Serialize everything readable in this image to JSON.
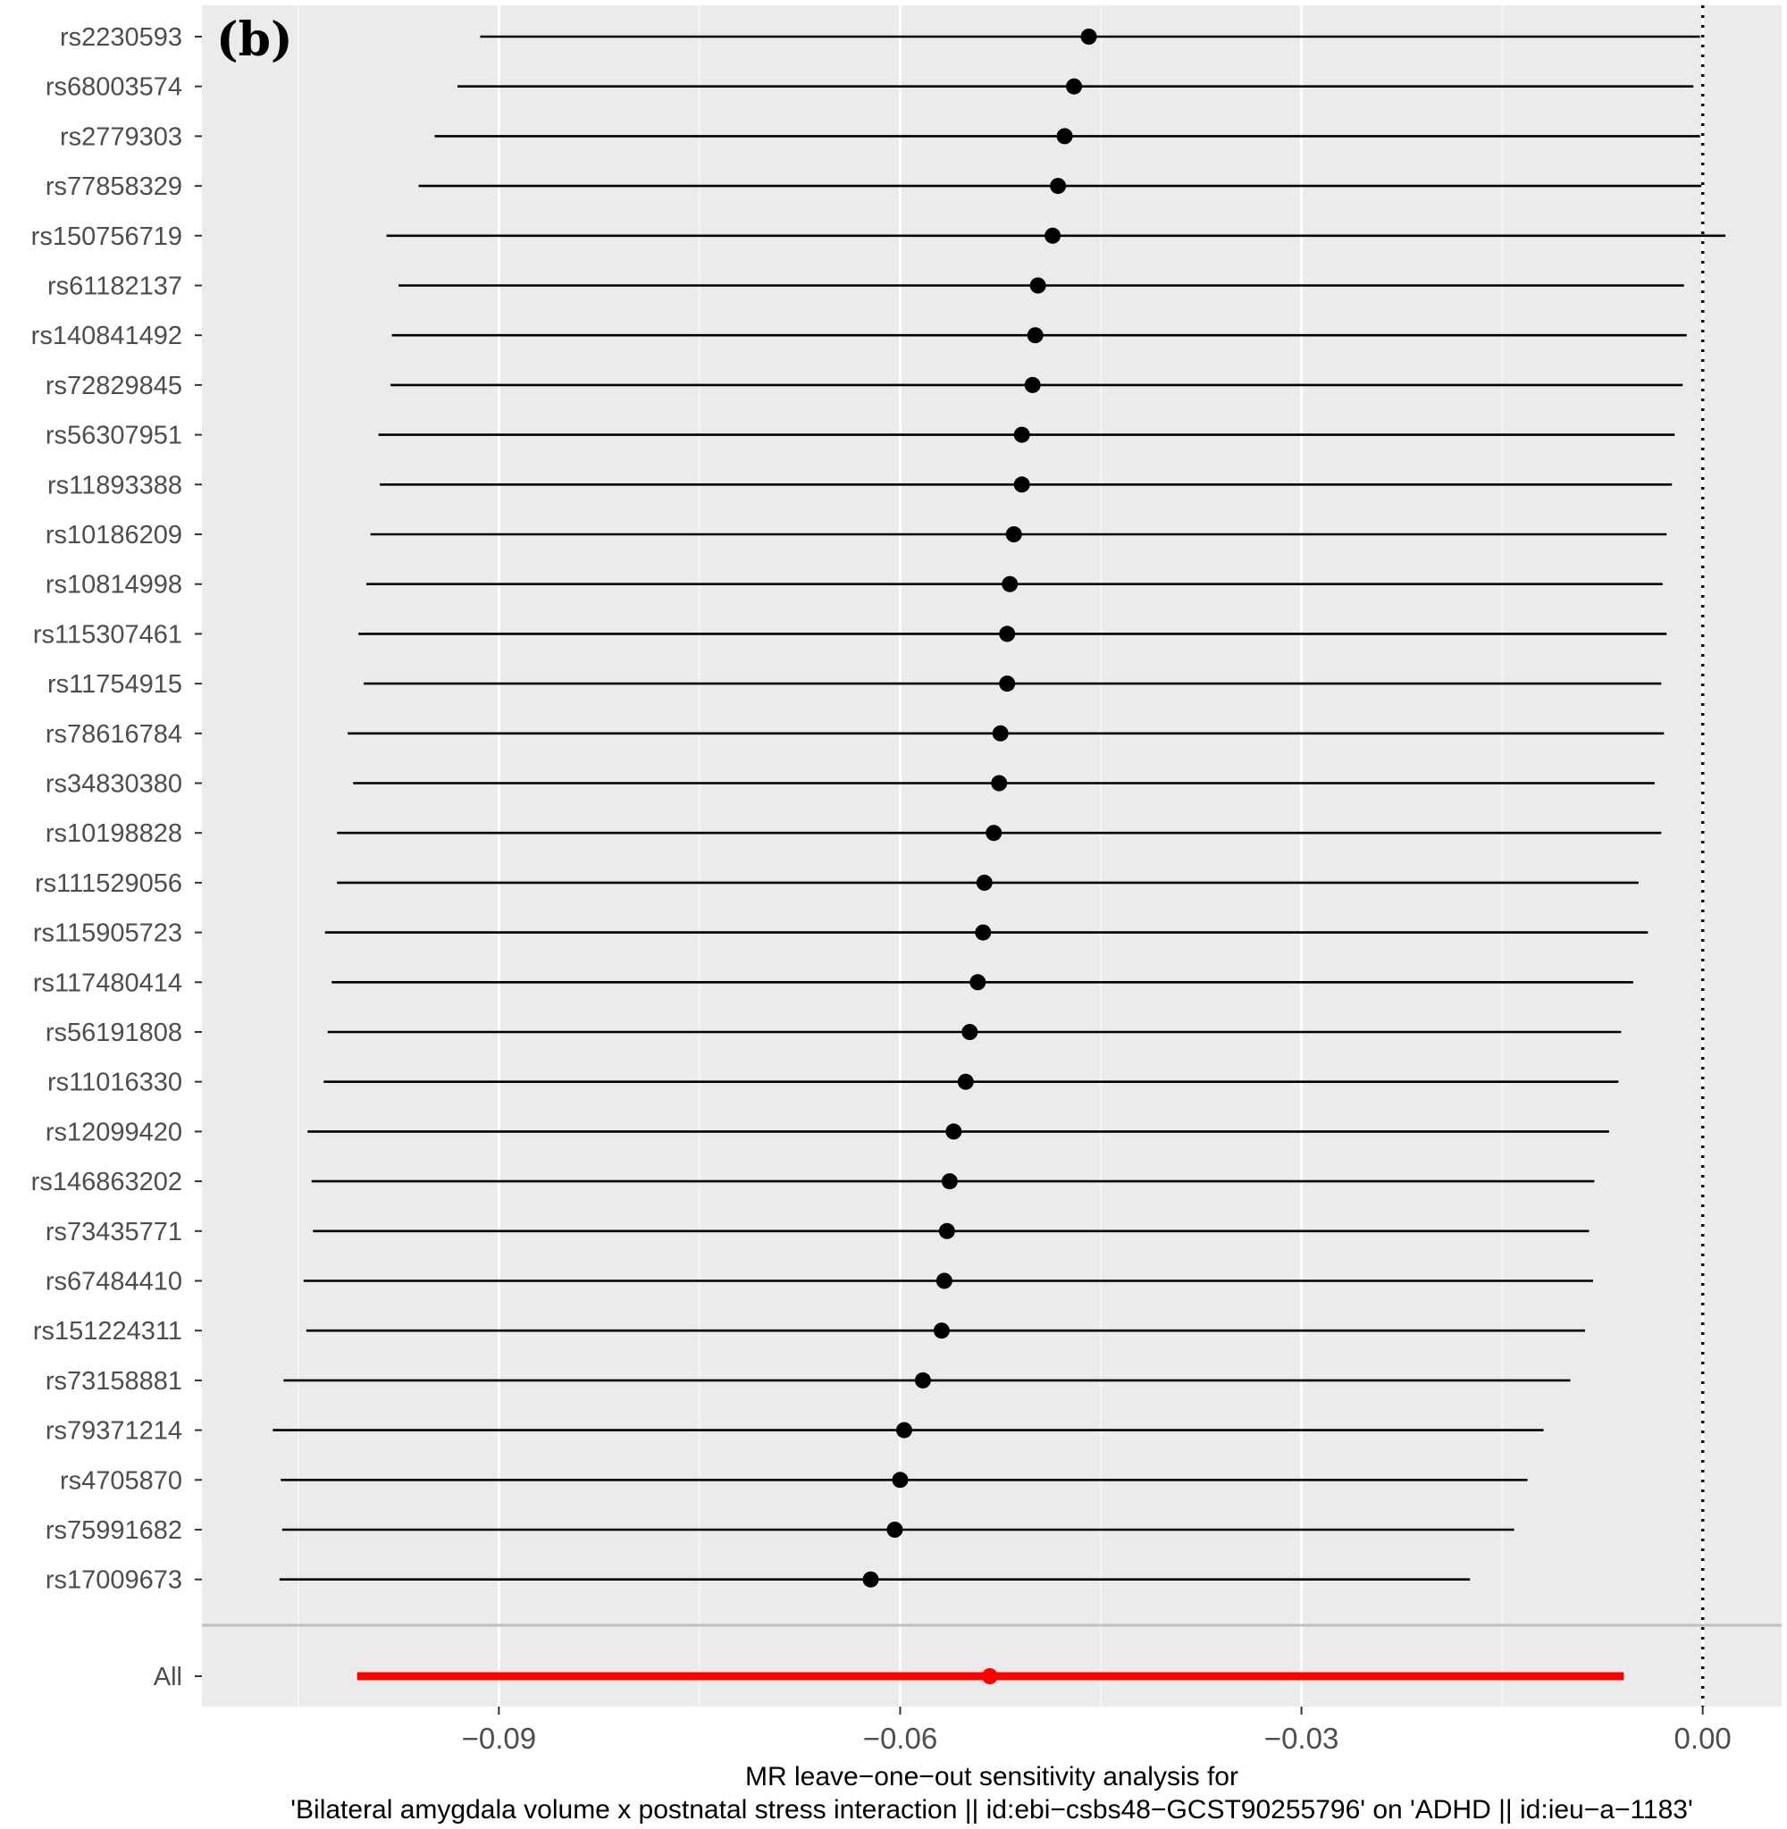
{
  "panel_tag": "(b)",
  "chart_data": {
    "type": "scatter",
    "subtype": "forest-plot",
    "xlabel_line1": "MR leave−one−out sensitivity analysis for",
    "xlabel_line2": "'Bilateral amygdala volume x postnatal stress interaction || id:ebi−csbs48−GCST90255796' on 'ADHD || id:ieu−a−1183'",
    "xlim": [
      -0.1122,
      0.0059
    ],
    "xticks": [
      -0.09,
      -0.06,
      -0.03,
      0.0
    ],
    "xtick_labels": [
      "−0.09",
      "−0.06",
      "−0.03",
      "0.00"
    ],
    "reference_line": 0.0,
    "grid": true,
    "colors": {
      "snp": "#000000",
      "overall": "#ff0000",
      "panel": "#ebebeb",
      "grid": "#ffffff"
    },
    "rows": [
      {
        "label": "rs2230593",
        "b": -0.0459,
        "lo": -0.0914,
        "hi": -0.0002
      },
      {
        "label": "rs68003574",
        "b": -0.047,
        "lo": -0.0931,
        "hi": -0.0007
      },
      {
        "label": "rs2779303",
        "b": -0.0477,
        "lo": -0.0948,
        "hi": -0.0002
      },
      {
        "label": "rs77858329",
        "b": -0.0482,
        "lo": -0.096,
        "hi": -0.0001
      },
      {
        "label": "rs150756719",
        "b": -0.0486,
        "lo": -0.0984,
        "hi": 0.0017
      },
      {
        "label": "rs61182137",
        "b": -0.0497,
        "lo": -0.0975,
        "hi": -0.0014
      },
      {
        "label": "rs140841492",
        "b": -0.0499,
        "lo": -0.098,
        "hi": -0.0012
      },
      {
        "label": "rs72829845",
        "b": -0.0501,
        "lo": -0.0981,
        "hi": -0.0015
      },
      {
        "label": "rs56307951",
        "b": -0.0509,
        "lo": -0.099,
        "hi": -0.0021
      },
      {
        "label": "rs11893388",
        "b": -0.0509,
        "lo": -0.0989,
        "hi": -0.0023
      },
      {
        "label": "rs10186209",
        "b": -0.0515,
        "lo": -0.0996,
        "hi": -0.0027
      },
      {
        "label": "rs10814998",
        "b": -0.0518,
        "lo": -0.0999,
        "hi": -0.003
      },
      {
        "label": "rs115307461",
        "b": -0.052,
        "lo": -0.1005,
        "hi": -0.0027
      },
      {
        "label": "rs11754915",
        "b": -0.052,
        "lo": -0.1001,
        "hi": -0.0031
      },
      {
        "label": "rs78616784",
        "b": -0.0525,
        "lo": -0.1013,
        "hi": -0.0029
      },
      {
        "label": "rs34830380",
        "b": -0.0526,
        "lo": -0.1009,
        "hi": -0.0036
      },
      {
        "label": "rs10198828",
        "b": -0.053,
        "lo": -0.1021,
        "hi": -0.0031
      },
      {
        "label": "rs111529056",
        "b": -0.0537,
        "lo": -0.1021,
        "hi": -0.0048
      },
      {
        "label": "rs115905723",
        "b": -0.0538,
        "lo": -0.103,
        "hi": -0.0041
      },
      {
        "label": "rs117480414",
        "b": -0.0542,
        "lo": -0.1025,
        "hi": -0.0052
      },
      {
        "label": "rs56191808",
        "b": -0.0548,
        "lo": -0.1028,
        "hi": -0.0061
      },
      {
        "label": "rs11016330",
        "b": -0.0551,
        "lo": -0.1031,
        "hi": -0.0063
      },
      {
        "label": "rs12099420",
        "b": -0.056,
        "lo": -0.1043,
        "hi": -0.007
      },
      {
        "label": "rs146863202",
        "b": -0.0563,
        "lo": -0.104,
        "hi": -0.0081
      },
      {
        "label": "rs73435771",
        "b": -0.0565,
        "lo": -0.1039,
        "hi": -0.0085
      },
      {
        "label": "rs67484410",
        "b": -0.0567,
        "lo": -0.1046,
        "hi": -0.0082
      },
      {
        "label": "rs151224311",
        "b": -0.0569,
        "lo": -0.1044,
        "hi": -0.0088
      },
      {
        "label": "rs73158881",
        "b": -0.0583,
        "lo": -0.1061,
        "hi": -0.0099
      },
      {
        "label": "rs79371214",
        "b": -0.0597,
        "lo": -0.1069,
        "hi": -0.0119
      },
      {
        "label": "rs4705870",
        "b": -0.06,
        "lo": -0.1063,
        "hi": -0.0131
      },
      {
        "label": "rs75991682",
        "b": -0.0604,
        "lo": -0.1062,
        "hi": -0.0141
      },
      {
        "label": "rs17009673",
        "b": -0.0622,
        "lo": -0.1064,
        "hi": -0.0174
      }
    ],
    "overall": {
      "label": "All",
      "b": -0.0533,
      "lo": -0.1006,
      "hi": -0.0059
    }
  }
}
